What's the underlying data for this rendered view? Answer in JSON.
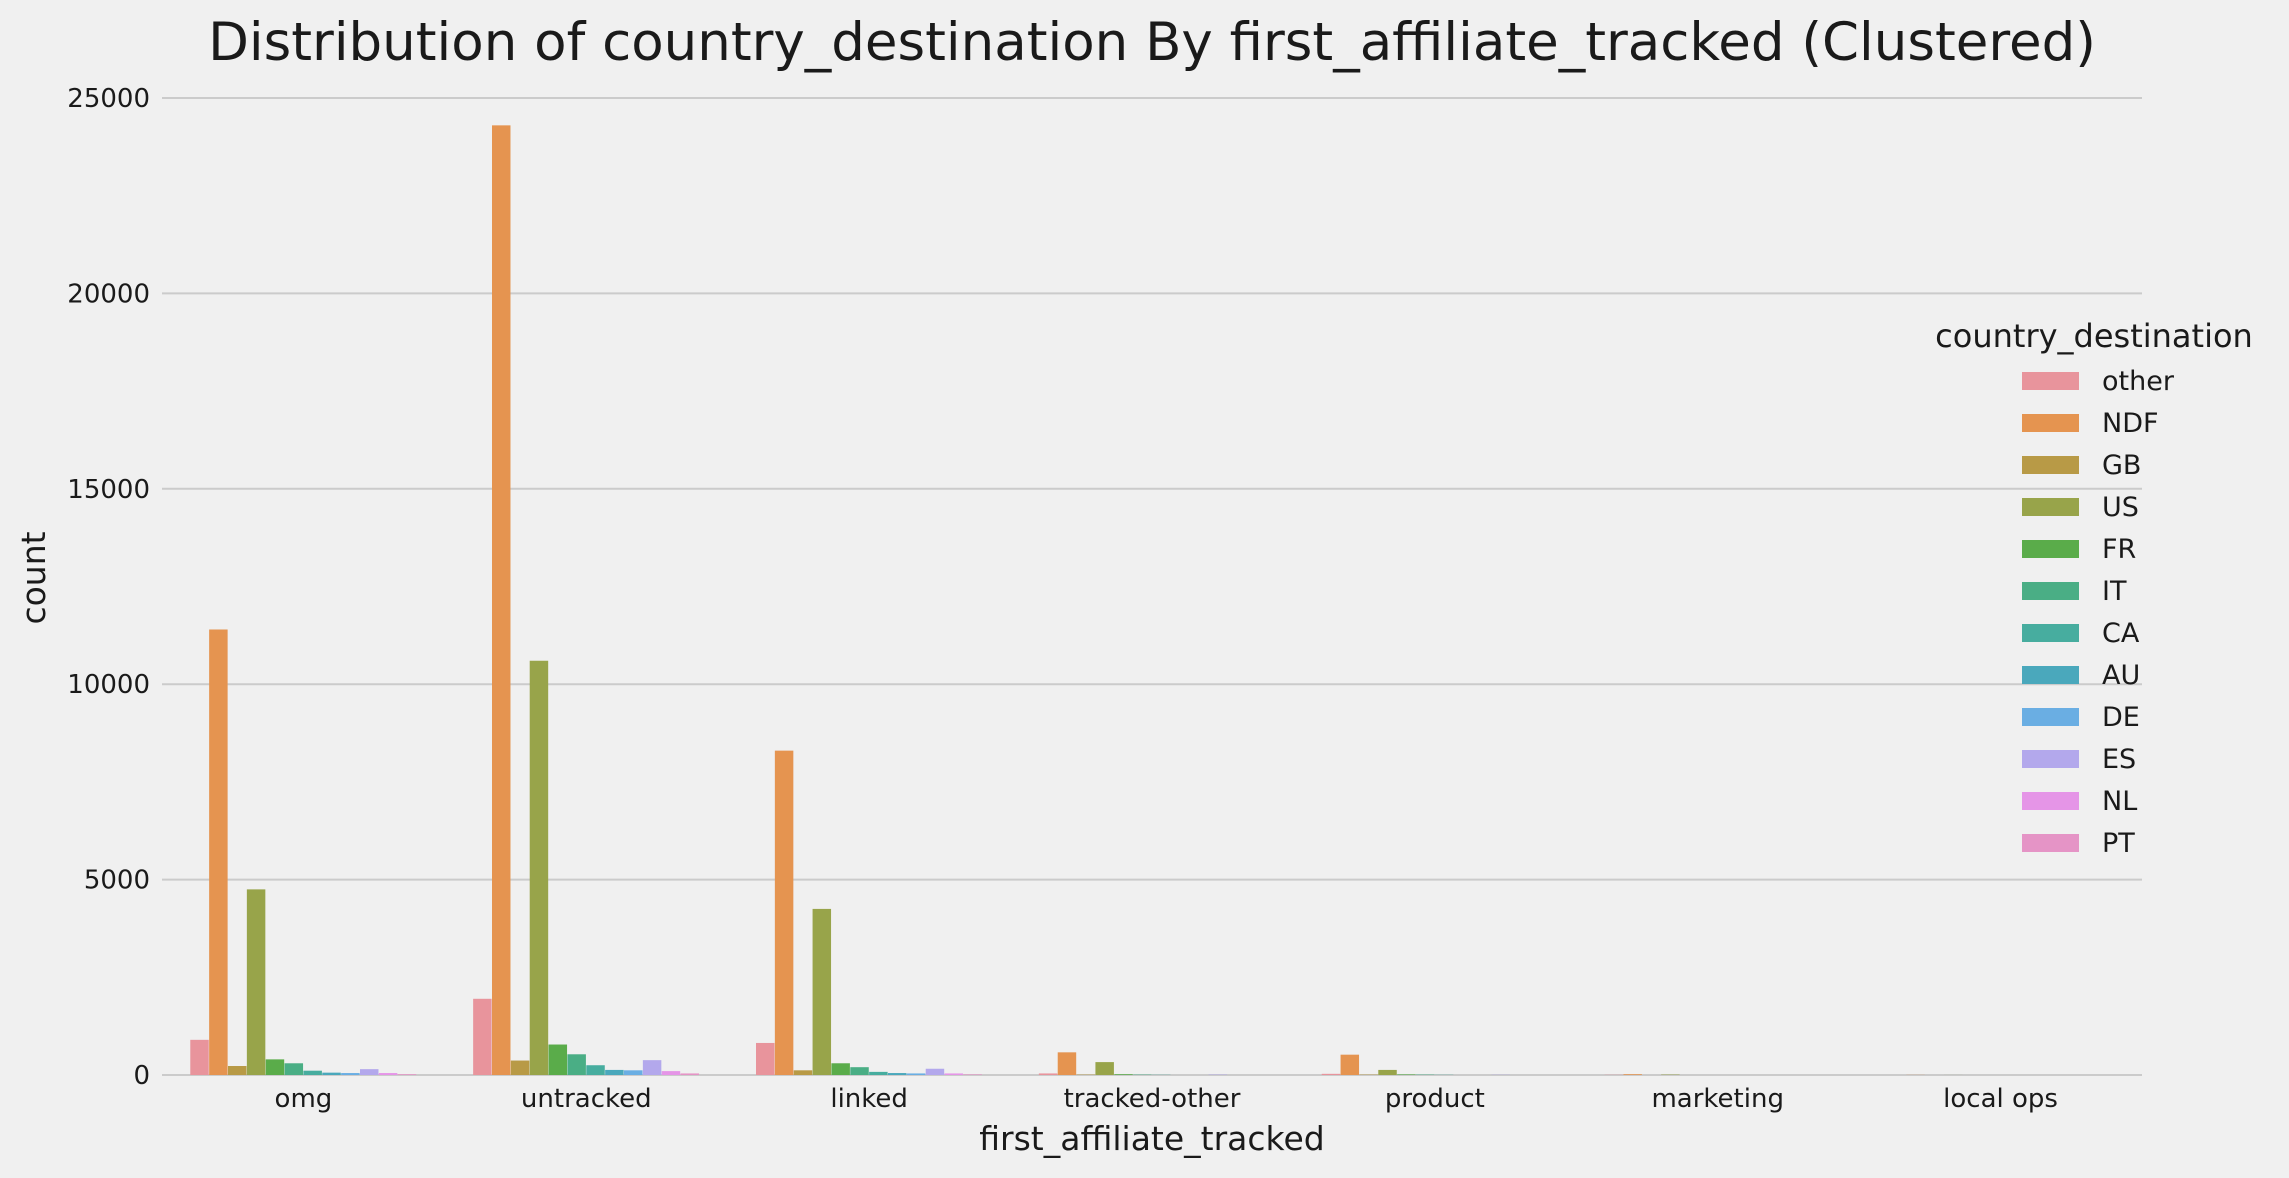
{
  "chart_data": {
    "type": "bar",
    "title": "Distribution of country_destination By first_affiliate_tracked (Clustered)",
    "xlabel": "first_affiliate_tracked",
    "ylabel": "count",
    "ylim": [
      0,
      25000
    ],
    "yticks": [
      0,
      5000,
      10000,
      15000,
      20000,
      25000
    ],
    "grid": true,
    "legend_title": "country_destination",
    "legend_position": "right",
    "categories": [
      "omg",
      "untracked",
      "linked",
      "tracked-other",
      "product",
      "marketing",
      "local ops"
    ],
    "series": [
      {
        "name": "other",
        "color": "#e8949c",
        "values": [
          900,
          1950,
          820,
          40,
          30,
          5,
          0
        ]
      },
      {
        "name": "NDF",
        "color": "#e59450",
        "values": [
          11400,
          24300,
          8300,
          580,
          520,
          20,
          3
        ]
      },
      {
        "name": "GB",
        "color": "#b89a46",
        "values": [
          230,
          370,
          120,
          10,
          10,
          0,
          0
        ]
      },
      {
        "name": "US",
        "color": "#98a44a",
        "values": [
          4750,
          10600,
          4250,
          330,
          130,
          10,
          1
        ]
      },
      {
        "name": "FR",
        "color": "#5aac4a",
        "values": [
          400,
          780,
          300,
          20,
          15,
          0,
          0
        ]
      },
      {
        "name": "IT",
        "color": "#4aae85",
        "values": [
          300,
          530,
          200,
          10,
          10,
          0,
          0
        ]
      },
      {
        "name": "CA",
        "color": "#47ad9f",
        "values": [
          110,
          250,
          80,
          5,
          5,
          0,
          0
        ]
      },
      {
        "name": "AU",
        "color": "#4aa8bc",
        "values": [
          60,
          130,
          50,
          0,
          0,
          0,
          0
        ]
      },
      {
        "name": "DE",
        "color": "#6aaee3",
        "values": [
          50,
          120,
          40,
          0,
          0,
          0,
          0
        ]
      },
      {
        "name": "ES",
        "color": "#b3a8ec",
        "values": [
          150,
          380,
          160,
          10,
          5,
          0,
          0
        ]
      },
      {
        "name": "NL",
        "color": "#e595e7",
        "values": [
          50,
          100,
          40,
          0,
          0,
          0,
          0
        ]
      },
      {
        "name": "PT",
        "color": "#e594c6",
        "values": [
          20,
          40,
          15,
          0,
          0,
          0,
          0
        ]
      }
    ]
  }
}
